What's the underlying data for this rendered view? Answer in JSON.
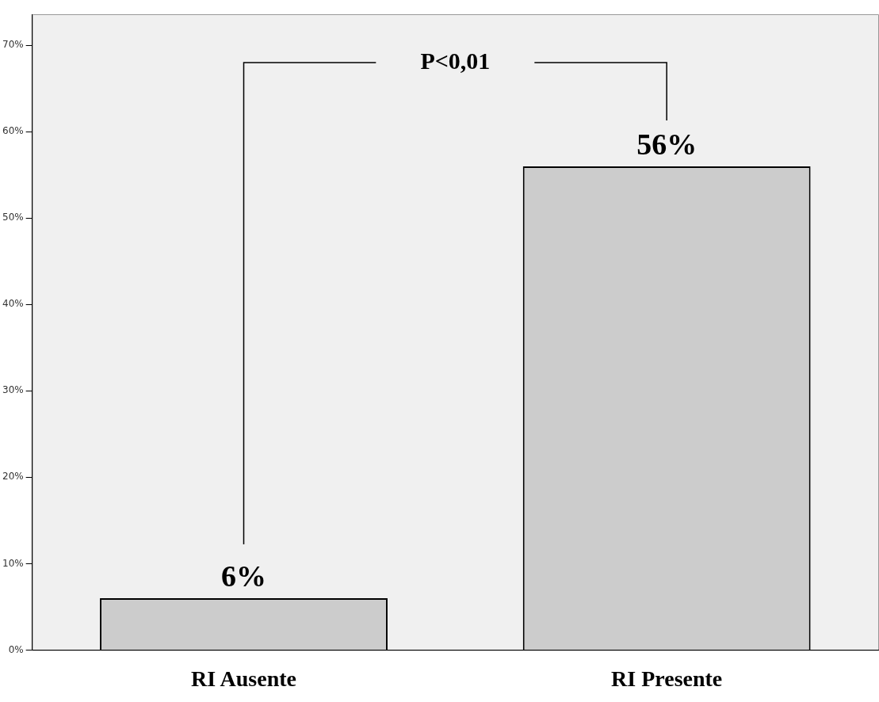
{
  "chart_data": {
    "type": "bar",
    "categories": [
      "RI Ausente",
      "RI Presente"
    ],
    "values": [
      6,
      56
    ],
    "color": "#cccccc",
    "value_labels": [
      "6%",
      "56%"
    ],
    "ylim": [
      0,
      73.6
    ],
    "yticks": [
      {
        "value": 0,
        "label": "0%"
      },
      {
        "value": 10,
        "label": "10%"
      },
      {
        "value": 20,
        "label": "20%"
      },
      {
        "value": 30,
        "label": "30%"
      },
      {
        "value": 40,
        "label": "40%"
      },
      {
        "value": 50,
        "label": "50%"
      },
      {
        "value": 60,
        "label": "60%"
      },
      {
        "value": 70,
        "label": "70%"
      }
    ],
    "grid": false,
    "legend": false,
    "annotations": [
      "P<0,01"
    ]
  }
}
